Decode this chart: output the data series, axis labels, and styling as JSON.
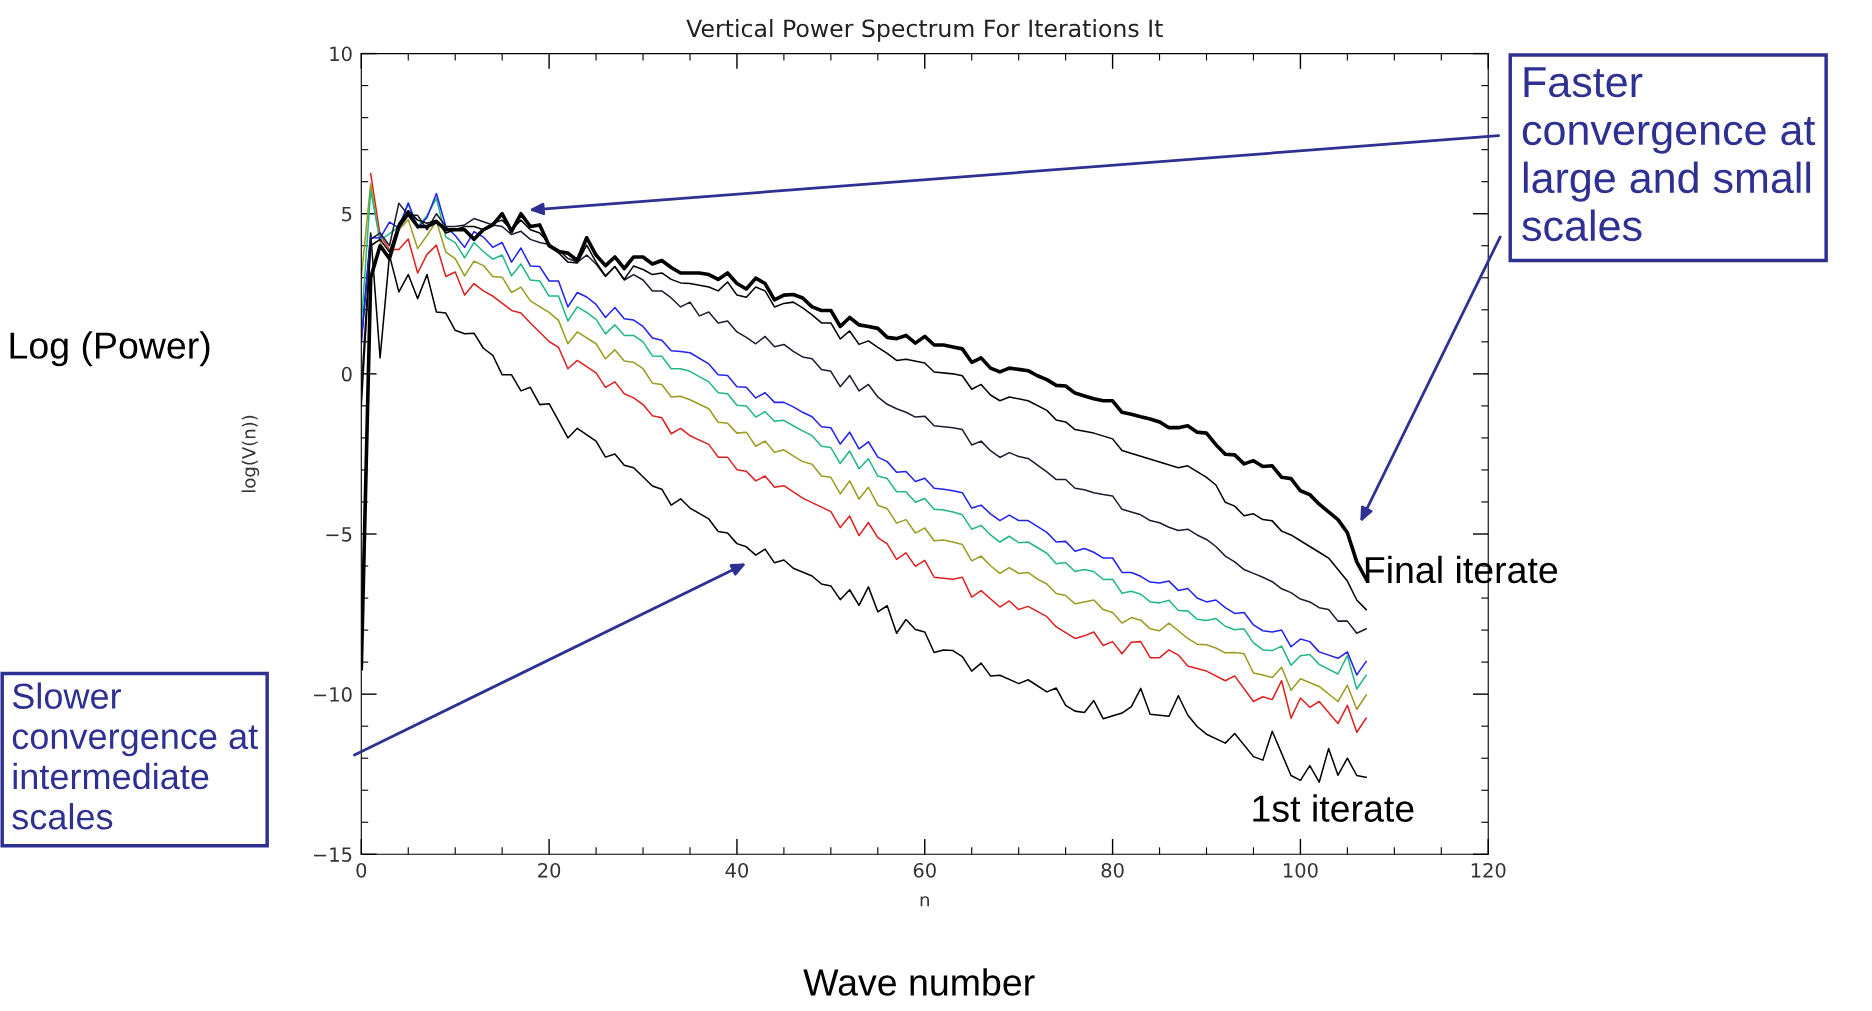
{
  "chart_data": {
    "type": "line",
    "title": "Vertical Power Spectrum For Iterations It",
    "xlabel": "n",
    "ylabel": "log(V(n))",
    "xlim": [
      0,
      120
    ],
    "xticks": [
      0,
      20,
      40,
      60,
      80,
      100,
      120
    ],
    "ylim": [
      -15,
      10
    ],
    "yticks": [
      -15,
      -10,
      -5,
      0,
      5,
      10
    ],
    "grid": false,
    "legend": false,
    "marker": "none",
    "line_style": "solid",
    "x": [
      0,
      1,
      2,
      3,
      4,
      5,
      6,
      7,
      8,
      9,
      10,
      11,
      12,
      13,
      14,
      15,
      16,
      17,
      18,
      19,
      20,
      21,
      22,
      23,
      24,
      25,
      26,
      27,
      28,
      29,
      30,
      31,
      32,
      33,
      34,
      35,
      36,
      37,
      38,
      39,
      40,
      41,
      42,
      43,
      44,
      45,
      46,
      47,
      48,
      49,
      50,
      51,
      52,
      53,
      54,
      55,
      56,
      57,
      58,
      59,
      60,
      61,
      62,
      63,
      64,
      65,
      66,
      67,
      68,
      69,
      70,
      71,
      72,
      73,
      74,
      75,
      76,
      77,
      78,
      79,
      80,
      81,
      82,
      83,
      84,
      85,
      86,
      87,
      88,
      89,
      90,
      91,
      92,
      93,
      94,
      95,
      96,
      97,
      98,
      99,
      100,
      101,
      102,
      103,
      104,
      105,
      106,
      107
    ],
    "series": [
      {
        "color": "#000000",
        "x": [
          0,
          1,
          2,
          3,
          4,
          5,
          6,
          7,
          8,
          9,
          10,
          11,
          12,
          13,
          14,
          15,
          16,
          17,
          18,
          19,
          20,
          22,
          23,
          25,
          26,
          27,
          28,
          29,
          31,
          32,
          33,
          34,
          35,
          37,
          38,
          39,
          40,
          41,
          42,
          43,
          44,
          45,
          46,
          48,
          49,
          50,
          51,
          52,
          53,
          54,
          55,
          56,
          57,
          58,
          59,
          60,
          61,
          62,
          63,
          64,
          65,
          66,
          67,
          68,
          70,
          71,
          73,
          74,
          75,
          76,
          77,
          78,
          79,
          81,
          82,
          83,
          84,
          86,
          87,
          88,
          89,
          90,
          92,
          93,
          95,
          96,
          97,
          98,
          99,
          100,
          101,
          102,
          103,
          104,
          105,
          106,
          107
        ],
        "values": [
          1.0,
          4.4,
          0.5,
          3.7,
          2.56,
          3.1,
          2.35,
          3.1,
          1.93,
          1.9,
          1.36,
          1.25,
          1.27,
          0.8,
          0.58,
          -0.03,
          -0.03,
          -0.53,
          -0.42,
          -0.96,
          -0.93,
          -2.0,
          -1.7,
          -2.1,
          -2.6,
          -2.5,
          -2.85,
          -2.93,
          -3.5,
          -3.6,
          -4.1,
          -3.9,
          -4.19,
          -4.53,
          -4.92,
          -4.97,
          -5.3,
          -5.4,
          -5.66,
          -5.47,
          -5.9,
          -5.81,
          -6.07,
          -6.31,
          -6.56,
          -6.62,
          -7.05,
          -6.74,
          -7.23,
          -6.65,
          -7.43,
          -7.24,
          -8.1,
          -7.67,
          -7.98,
          -8.06,
          -8.7,
          -8.62,
          -8.64,
          -8.83,
          -9.28,
          -9.03,
          -9.43,
          -9.41,
          -9.67,
          -9.55,
          -9.93,
          -9.81,
          -10.35,
          -10.53,
          -10.57,
          -10.2,
          -10.77,
          -10.59,
          -10.39,
          -9.82,
          -10.63,
          -10.69,
          -10.05,
          -10.65,
          -11.01,
          -11.25,
          -11.53,
          -11.23,
          -11.95,
          -12.06,
          -11.16,
          -11.85,
          -12.54,
          -12.69,
          -12.23,
          -12.75,
          -11.7,
          -12.53,
          -12.0,
          -12.54,
          -12.6
        ]
      },
      {
        "color": "#dd2222",
        "x": [
          1,
          2,
          3,
          4,
          5,
          6,
          7,
          8,
          9,
          10,
          11,
          12,
          13,
          14,
          16,
          17,
          18,
          20,
          21,
          22,
          23,
          25,
          26,
          27,
          28,
          29,
          30,
          31,
          32,
          33,
          34,
          35,
          37,
          38,
          39,
          40,
          41,
          42,
          43,
          44,
          45,
          47,
          49,
          50,
          51,
          52,
          53,
          54,
          55,
          56,
          57,
          58,
          59,
          60,
          61,
          63,
          64,
          65,
          66,
          68,
          69,
          70,
          71,
          73,
          74,
          76,
          77,
          78,
          79,
          80,
          81,
          82,
          83,
          84,
          85,
          86,
          87,
          88,
          90,
          92,
          93,
          95,
          96,
          97,
          98,
          99,
          100,
          101,
          102,
          104,
          105,
          106,
          107
        ],
        "values": [
          6.25,
          4.33,
          3.88,
          3.88,
          4.21,
          3.15,
          3.73,
          4.02,
          3.04,
          3.18,
          2.46,
          2.82,
          2.59,
          2.43,
          1.98,
          1.9,
          1.59,
          1.01,
          0.83,
          0.16,
          0.42,
          0.03,
          -0.42,
          -0.25,
          -0.62,
          -0.75,
          -0.96,
          -1.31,
          -1.37,
          -1.87,
          -1.7,
          -1.93,
          -2.2,
          -2.6,
          -2.6,
          -2.99,
          -3.04,
          -3.34,
          -3.19,
          -3.54,
          -3.49,
          -3.88,
          -4.16,
          -4.3,
          -4.8,
          -4.44,
          -5.05,
          -4.64,
          -5.11,
          -5.31,
          -5.79,
          -5.59,
          -6.01,
          -5.82,
          -6.35,
          -6.41,
          -6.35,
          -6.97,
          -6.77,
          -7.28,
          -7.09,
          -7.36,
          -7.26,
          -7.58,
          -7.9,
          -8.26,
          -8.18,
          -8.06,
          -8.48,
          -8.36,
          -8.74,
          -8.38,
          -8.36,
          -8.86,
          -8.86,
          -8.62,
          -8.78,
          -9.12,
          -9.28,
          -9.58,
          -9.43,
          -10.23,
          -10.08,
          -10.17,
          -9.58,
          -10.75,
          -10.12,
          -10.41,
          -10.23,
          -10.92,
          -10.35,
          -11.19,
          -10.75
        ]
      },
      {
        "color": "#9b9b22",
        "x": [
          0,
          1,
          2,
          3,
          4,
          5,
          6,
          7,
          8,
          9,
          10,
          11,
          12,
          13,
          14,
          15,
          16,
          17,
          18,
          20,
          21,
          22,
          23,
          25,
          26,
          27,
          28,
          29,
          30,
          31,
          32,
          33,
          34,
          35,
          37,
          38,
          39,
          40,
          41,
          42,
          43,
          44,
          45,
          46,
          47,
          48,
          49,
          50,
          51,
          52,
          53,
          54,
          55,
          56,
          57,
          58,
          59,
          60,
          61,
          62,
          63,
          64,
          65,
          66,
          67,
          68,
          69,
          70,
          71,
          72,
          73,
          74,
          75,
          76,
          77,
          78,
          79,
          80,
          81,
          82,
          83,
          84,
          85,
          86,
          87,
          88,
          89,
          90,
          91,
          92,
          93,
          94,
          95,
          96,
          97,
          98,
          99,
          100,
          102,
          104,
          105,
          106,
          107
        ],
        "values": [
          3.0,
          5.94,
          4.1,
          3.6,
          4.49,
          4.82,
          3.91,
          4.32,
          4.77,
          3.8,
          3.6,
          3.06,
          3.52,
          3.38,
          3.04,
          3.02,
          2.54,
          2.71,
          2.28,
          1.92,
          1.67,
          0.94,
          1.31,
          0.94,
          0.47,
          0.75,
          0.4,
          0.36,
          0.16,
          -0.29,
          -0.33,
          -0.72,
          -0.7,
          -0.81,
          -1.09,
          -1.51,
          -1.54,
          -1.85,
          -1.82,
          -2.26,
          -2.1,
          -2.45,
          -2.37,
          -2.56,
          -2.74,
          -2.82,
          -3.19,
          -3.23,
          -3.75,
          -3.34,
          -3.91,
          -3.54,
          -4.1,
          -4.21,
          -4.66,
          -4.55,
          -4.97,
          -4.81,
          -5.21,
          -5.19,
          -5.25,
          -5.33,
          -5.84,
          -5.69,
          -5.99,
          -6.23,
          -6.05,
          -6.23,
          -6.2,
          -6.41,
          -6.56,
          -6.86,
          -6.92,
          -7.18,
          -7.12,
          -7.06,
          -7.36,
          -7.45,
          -7.78,
          -7.61,
          -7.69,
          -7.96,
          -8.02,
          -7.78,
          -8.02,
          -8.26,
          -8.44,
          -8.46,
          -8.56,
          -8.71,
          -8.7,
          -8.74,
          -9.34,
          -9.4,
          -9.48,
          -9.16,
          -9.88,
          -9.52,
          -9.76,
          -10.23,
          -9.72,
          -10.47,
          -10.03
        ]
      },
      {
        "color": "#22b883",
        "x": [
          0,
          1,
          2,
          3,
          4,
          5,
          6,
          7,
          8,
          9,
          10,
          11,
          12,
          13,
          14,
          15,
          16,
          17,
          18,
          19,
          20,
          21,
          22,
          23,
          24,
          25,
          26,
          27,
          28,
          29,
          30,
          31,
          32,
          33,
          34,
          35,
          37,
          38,
          39,
          40,
          41,
          42,
          43,
          44,
          45,
          46,
          47,
          48,
          49,
          50,
          51,
          52,
          53,
          54,
          55,
          56,
          57,
          58,
          59,
          60,
          61,
          62,
          63,
          64,
          65,
          66,
          67,
          68,
          69,
          70,
          71,
          73,
          74,
          75,
          76,
          77,
          78,
          79,
          80,
          81,
          82,
          83,
          84,
          85,
          86,
          87,
          88,
          89,
          90,
          91,
          92,
          93,
          94,
          95,
          96,
          97,
          98,
          99,
          100,
          101,
          102,
          104,
          105,
          106,
          107
        ],
        "values": [
          1.5,
          5.72,
          4.16,
          4.38,
          4.6,
          5.33,
          4.6,
          4.94,
          5.49,
          4.27,
          4.1,
          3.62,
          4.1,
          3.82,
          3.58,
          3.71,
          3.06,
          3.43,
          2.93,
          2.9,
          2.43,
          2.43,
          1.65,
          2.09,
          1.92,
          1.7,
          1.25,
          1.53,
          1.2,
          1.2,
          1.0,
          0.56,
          0.55,
          0.16,
          0.16,
          0.08,
          -0.25,
          -0.59,
          -0.62,
          -0.98,
          -1.0,
          -1.35,
          -1.18,
          -1.48,
          -1.45,
          -1.62,
          -1.78,
          -1.93,
          -2.26,
          -2.3,
          -2.8,
          -2.41,
          -2.96,
          -2.65,
          -3.19,
          -3.27,
          -3.68,
          -3.68,
          -4.01,
          -3.89,
          -4.23,
          -4.25,
          -4.31,
          -4.4,
          -4.85,
          -4.73,
          -5.03,
          -5.25,
          -5.07,
          -5.27,
          -5.25,
          -5.6,
          -5.93,
          -5.89,
          -6.17,
          -6.11,
          -6.17,
          -6.42,
          -6.41,
          -6.85,
          -6.79,
          -6.88,
          -7.12,
          -7.15,
          -7.07,
          -7.39,
          -7.4,
          -7.66,
          -7.7,
          -7.64,
          -7.88,
          -7.99,
          -7.96,
          -8.4,
          -8.62,
          -8.64,
          -8.5,
          -9.1,
          -8.8,
          -8.76,
          -9.07,
          -9.37,
          -8.8,
          -9.84,
          -9.41
        ]
      },
      {
        "color": "#2222ee",
        "x": [
          0,
          1,
          2,
          3,
          4,
          5,
          6,
          7,
          8,
          9,
          10,
          11,
          12,
          13,
          14,
          15,
          16,
          17,
          18,
          19,
          20,
          21,
          22,
          23,
          24,
          25,
          26,
          27,
          28,
          29,
          30,
          31,
          32,
          33,
          34,
          35,
          37,
          38,
          39,
          40,
          41,
          42,
          43,
          44,
          45,
          46,
          47,
          48,
          49,
          50,
          51,
          52,
          53,
          54,
          55,
          56,
          57,
          58,
          59,
          60,
          61,
          62,
          63,
          64,
          65,
          66,
          67,
          68,
          69,
          70,
          71,
          73,
          74,
          75,
          76,
          77,
          78,
          79,
          80,
          81,
          82,
          83,
          84,
          85,
          86,
          87,
          88,
          89,
          90,
          91,
          92,
          93,
          94,
          95,
          96,
          97,
          98,
          99,
          100,
          101,
          102,
          104,
          105,
          106,
          107
        ],
        "values": [
          1.0,
          4.26,
          4.24,
          4.74,
          4.55,
          5.33,
          4.55,
          4.88,
          5.63,
          4.6,
          4.32,
          3.95,
          4.44,
          4.27,
          3.95,
          4.1,
          3.49,
          3.93,
          3.37,
          3.35,
          2.9,
          2.9,
          2.09,
          2.54,
          2.4,
          2.17,
          1.76,
          2.07,
          1.72,
          1.68,
          1.48,
          1.12,
          1.05,
          0.72,
          0.7,
          0.66,
          0.31,
          -0.03,
          -0.05,
          -0.4,
          -0.42,
          -0.75,
          -0.59,
          -0.89,
          -0.89,
          -1.03,
          -1.2,
          -1.34,
          -1.65,
          -1.68,
          -2.19,
          -1.82,
          -2.34,
          -2.12,
          -2.6,
          -2.74,
          -3.07,
          -3.05,
          -3.36,
          -3.26,
          -3.57,
          -3.6,
          -3.65,
          -3.71,
          -4.19,
          -4.1,
          -4.37,
          -4.58,
          -4.41,
          -4.58,
          -4.58,
          -4.95,
          -5.25,
          -5.23,
          -5.54,
          -5.45,
          -5.57,
          -5.75,
          -5.75,
          -6.2,
          -6.2,
          -6.32,
          -6.5,
          -6.53,
          -6.47,
          -6.76,
          -6.7,
          -7.0,
          -7.12,
          -7.06,
          -7.3,
          -7.48,
          -7.45,
          -7.84,
          -8.02,
          -8.06,
          -8.0,
          -8.52,
          -8.28,
          -8.36,
          -8.68,
          -8.88,
          -8.68,
          -9.4,
          -8.98
        ]
      },
      {
        "color": "#1c1c30",
        "values": [
          -0.5,
          4.2,
          4.4,
          4.0,
          5.33,
          4.95,
          4.95,
          4.5,
          5.0,
          4.6,
          4.6,
          4.65,
          4.85,
          4.75,
          4.65,
          4.6,
          4.35,
          4.45,
          4.2,
          4.1,
          4.04,
          3.87,
          3.6,
          3.49,
          3.71,
          3.43,
          3.04,
          3.35,
          2.93,
          3.1,
          2.93,
          2.59,
          2.59,
          2.37,
          2.09,
          2.24,
          1.81,
          1.93,
          1.59,
          1.65,
          1.31,
          1.14,
          0.94,
          1.17,
          0.85,
          0.92,
          0.7,
          0.53,
          0.47,
          0.14,
          0.08,
          -0.4,
          -0.05,
          -0.53,
          -0.33,
          -0.72,
          -0.95,
          -1.09,
          -1.2,
          -1.35,
          -1.32,
          -1.62,
          -1.65,
          -1.68,
          -1.74,
          -2.22,
          -2.1,
          -2.4,
          -2.61,
          -2.46,
          -2.58,
          -2.64,
          -2.85,
          -3.06,
          -3.3,
          -3.3,
          -3.57,
          -3.62,
          -3.71,
          -3.77,
          -3.81,
          -4.23,
          -4.31,
          -4.4,
          -4.58,
          -4.65,
          -4.79,
          -4.89,
          -4.85,
          -5.03,
          -5.17,
          -5.39,
          -5.69,
          -5.87,
          -6.11,
          -6.23,
          -6.35,
          -6.49,
          -6.71,
          -6.83,
          -7.03,
          -7.12,
          -7.3,
          -7.36,
          -7.72,
          -7.72,
          -8.1,
          -7.96
        ]
      },
      {
        "color": "#000000",
        "x": [
          0,
          1,
          2,
          3,
          4,
          5,
          6,
          7,
          8,
          9,
          10,
          11,
          12,
          13,
          14,
          15,
          16,
          17,
          18,
          19,
          20,
          22,
          23,
          24,
          25,
          26,
          27,
          28,
          29,
          30,
          31,
          32,
          33,
          34,
          35,
          37,
          38,
          39,
          40,
          41,
          42,
          43,
          44,
          45,
          46,
          47,
          48,
          49,
          50,
          51,
          52,
          53,
          54,
          55,
          56,
          57,
          58,
          60,
          61,
          63,
          64,
          65,
          66,
          67,
          68,
          69,
          71,
          73,
          74,
          75,
          76,
          78,
          80,
          81,
          83,
          85,
          87,
          88,
          90,
          91,
          92,
          93,
          94,
          95,
          96,
          97,
          98,
          99,
          100,
          101,
          102,
          103,
          104,
          105,
          106,
          107
        ],
        "values": [
          -1.0,
          4.0,
          4.2,
          3.8,
          4.7,
          5.1,
          4.8,
          4.7,
          4.8,
          4.4,
          4.5,
          4.6,
          4.6,
          4.5,
          4.7,
          4.8,
          4.5,
          4.8,
          4.5,
          4.4,
          4.07,
          3.49,
          3.46,
          4.02,
          3.49,
          3.06,
          3.35,
          2.95,
          3.37,
          3.26,
          3.1,
          3.15,
          2.95,
          2.84,
          2.82,
          2.71,
          2.59,
          2.87,
          2.46,
          2.39,
          2.71,
          2.59,
          2.09,
          2.2,
          2.24,
          2.06,
          1.84,
          1.59,
          1.59,
          1.09,
          1.34,
          0.92,
          1.03,
          0.83,
          0.64,
          0.42,
          0.46,
          0.34,
          0.06,
          0.0,
          -0.06,
          -0.48,
          -0.33,
          -0.66,
          -0.84,
          -0.72,
          -0.84,
          -1.14,
          -1.44,
          -1.5,
          -1.74,
          -1.85,
          -2.03,
          -2.39,
          -2.57,
          -2.75,
          -2.93,
          -2.87,
          -3.23,
          -3.47,
          -4.01,
          -4.13,
          -4.43,
          -4.37,
          -4.55,
          -4.59,
          -4.91,
          -5.03,
          -5.21,
          -5.39,
          -5.57,
          -5.75,
          -6.11,
          -6.47,
          -7.06,
          -7.36
        ]
      },
      {
        "color": "#000000",
        "values": [
          -9.2,
          3.0,
          4.0,
          3.6,
          4.6,
          5.0,
          4.6,
          4.6,
          4.75,
          4.5,
          4.5,
          4.5,
          4.2,
          4.5,
          4.65,
          5.0,
          4.45,
          5.0,
          4.6,
          4.65,
          4.0,
          3.82,
          3.77,
          3.54,
          4.25,
          3.71,
          3.38,
          3.65,
          3.29,
          3.65,
          3.65,
          3.43,
          3.54,
          3.32,
          3.15,
          3.15,
          3.15,
          3.1,
          2.95,
          3.15,
          2.82,
          2.65,
          2.99,
          2.82,
          2.31,
          2.46,
          2.48,
          2.37,
          2.09,
          1.98,
          1.98,
          1.48,
          1.76,
          1.53,
          1.48,
          1.42,
          1.14,
          1.1,
          1.2,
          0.96,
          1.17,
          0.9,
          0.9,
          0.84,
          0.78,
          0.36,
          0.5,
          0.18,
          0.06,
          0.18,
          0.14,
          0.1,
          -0.06,
          -0.18,
          -0.36,
          -0.38,
          -0.6,
          -0.69,
          -0.78,
          -0.84,
          -0.84,
          -1.2,
          -1.26,
          -1.34,
          -1.41,
          -1.5,
          -1.68,
          -1.68,
          -1.62,
          -1.82,
          -1.85,
          -2.21,
          -2.51,
          -2.53,
          -2.81,
          -2.71,
          -2.89,
          -2.87,
          -3.23,
          -3.27,
          -3.65,
          -3.77,
          -4.07,
          -4.31,
          -4.55,
          -4.96,
          -5.87,
          -6.41
        ]
      }
    ],
    "annotations": [
      "Faster\nconvergence at\nlarge and small\nscales",
      "Slower\nconvergence at\nintermediate\nscales",
      "Final iterate",
      "1st iterate",
      "Log (Power)",
      "Wave number"
    ]
  }
}
